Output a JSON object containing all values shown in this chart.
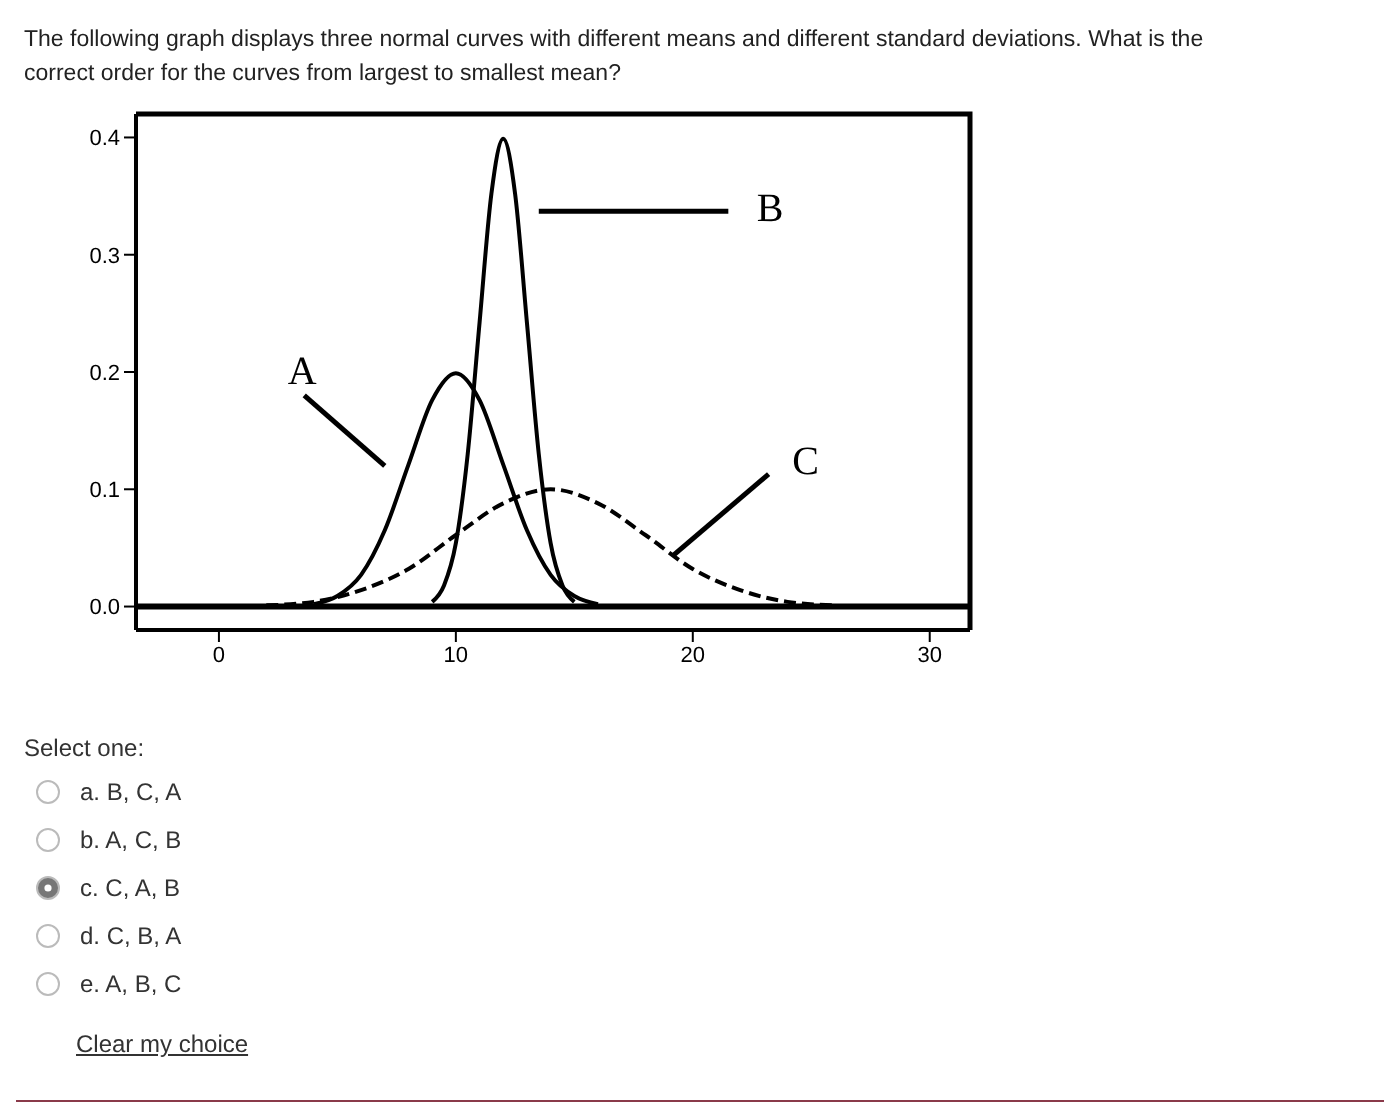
{
  "chart_data": {
    "type": "line",
    "title": "The following graph displays three normal curves with different means and different standard deviations. What is the correct order for the curves from largest to smallest mean?",
    "xlim": [
      -3.5,
      31.7
    ],
    "xticks": [
      0,
      10,
      20,
      30
    ],
    "ylim": [
      -0.02,
      0.42
    ],
    "yticks": [
      {
        "value": 0,
        "label": "0.0"
      },
      {
        "value": 0.1,
        "label": "0.1"
      },
      {
        "value": 0.2,
        "label": "0.2"
      },
      {
        "value": 0.3,
        "label": "0.3"
      },
      {
        "value": 0.4,
        "label": "0.4"
      }
    ],
    "marker": "none",
    "ref_lines": [
      {
        "axis": "y",
        "value": 0,
        "color": "#000000",
        "line_style": "solid"
      }
    ],
    "series": [
      {
        "name": "A",
        "color": "#000000",
        "line_style": "solid",
        "x": [
          4,
          5,
          6,
          7,
          8,
          9,
          10,
          11,
          12,
          13,
          14,
          15,
          16
        ],
        "values": [
          0.002,
          0.009,
          0.027,
          0.065,
          0.121,
          0.176,
          0.199,
          0.176,
          0.121,
          0.065,
          0.027,
          0.009,
          0.002
        ]
      },
      {
        "name": "B",
        "color": "#000000",
        "line_style": "solid",
        "x": [
          9,
          9.5,
          10,
          10.5,
          11,
          11.5,
          12,
          12.5,
          13,
          13.5,
          14,
          14.5,
          15
        ],
        "values": [
          0.004,
          0.018,
          0.054,
          0.13,
          0.242,
          0.352,
          0.399,
          0.352,
          0.242,
          0.13,
          0.054,
          0.018,
          0.004
        ]
      },
      {
        "name": "C",
        "color": "#000000",
        "line_style": "dashed",
        "x": [
          2,
          4,
          6,
          8,
          10,
          12,
          14,
          16,
          18,
          20,
          22,
          24,
          26
        ],
        "values": [
          0.001,
          0.004,
          0.014,
          0.032,
          0.061,
          0.088,
          0.1,
          0.088,
          0.061,
          0.032,
          0.014,
          0.004,
          0.001
        ]
      }
    ],
    "annotations": [
      "Select one:",
      "a. B, C, A",
      "b. A, C, B",
      "c. C, A, B",
      "d. C, B, A",
      "e. A, B, C",
      "Clear my choice"
    ]
  }
}
